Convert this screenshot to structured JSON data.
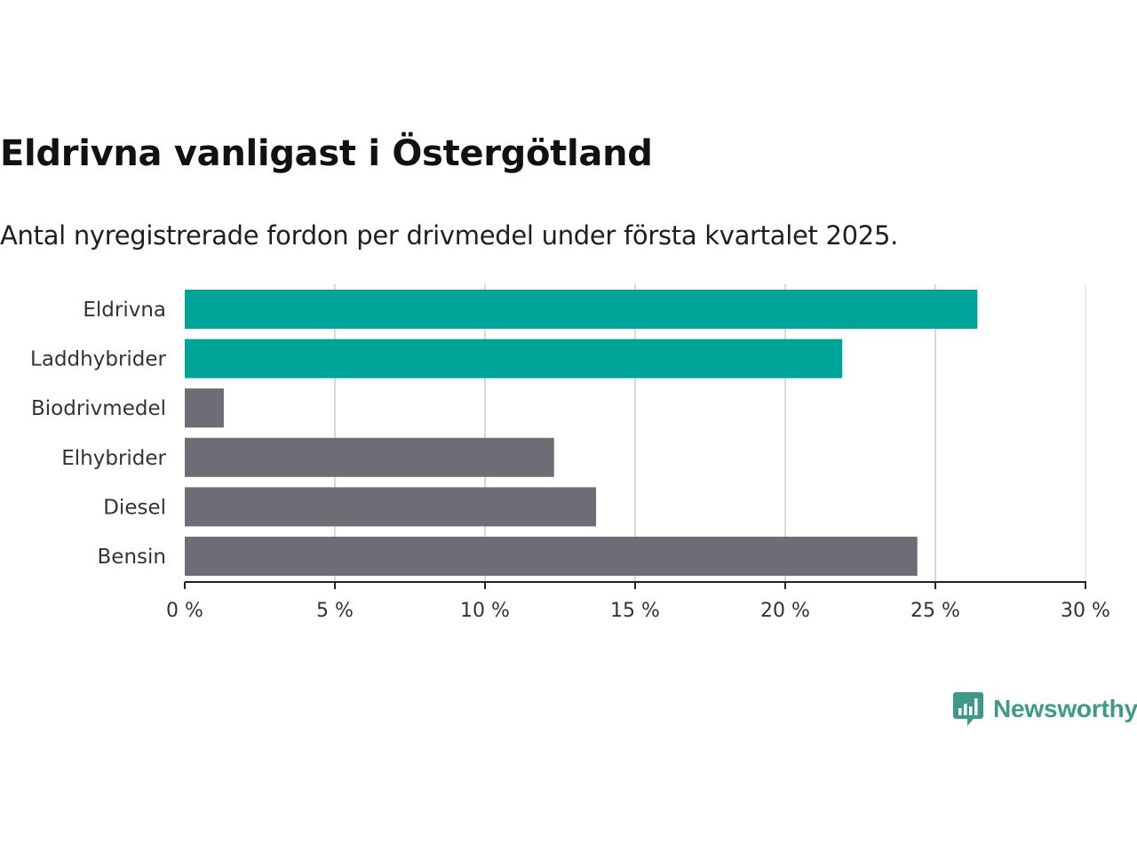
{
  "chart_data": {
    "type": "bar",
    "orientation": "horizontal",
    "title": "Eldrivna vanligast i Östergötland",
    "subtitle": "Antal nyregistrerade fordon per drivmedel under första kvartalet 2025.",
    "categories": [
      "Eldrivna",
      "Laddhybrider",
      "Biodrivmedel",
      "Elhybrider",
      "Diesel",
      "Bensin"
    ],
    "values": [
      26.4,
      21.9,
      1.3,
      12.3,
      13.7,
      24.4
    ],
    "bar_colors": [
      "#00a398",
      "#00a398",
      "#6e6d75",
      "#6e6d75",
      "#6e6d75",
      "#6e6d75"
    ],
    "xlim": [
      0,
      30
    ],
    "x_ticks": [
      0,
      5,
      10,
      15,
      20,
      25,
      30
    ],
    "x_tick_labels": [
      "0 %",
      "5 %",
      "10 %",
      "15 %",
      "20 %",
      "25 %",
      "30 %"
    ],
    "grid": true
  },
  "brand": {
    "name": "Newsworthy",
    "icon": "newsworthy-logo-icon",
    "color": "#3d9a8b"
  }
}
